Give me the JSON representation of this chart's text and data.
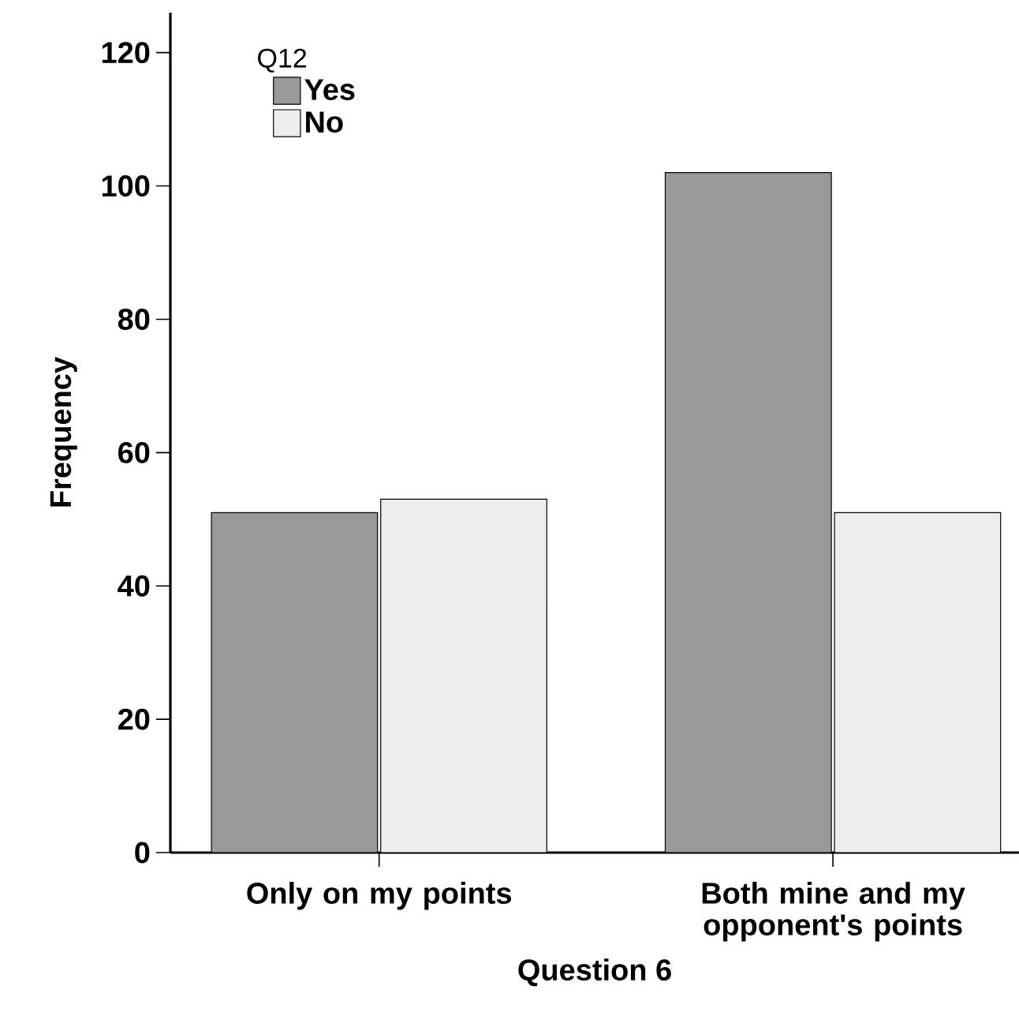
{
  "chart_data": {
    "type": "bar",
    "xlabel": "Question 6",
    "ylabel": "Frequency",
    "legend_title": "Q12",
    "categories": [
      "Only on my points",
      "Both mine and my opponent's points"
    ],
    "series": [
      {
        "name": "Yes",
        "color": "#999999",
        "values": [
          51,
          102
        ]
      },
      {
        "name": "No",
        "color": "#ededed",
        "values": [
          53,
          51
        ]
      }
    ],
    "ylim": [
      0,
      126
    ],
    "yticks": [
      0,
      20,
      40,
      60,
      80,
      100,
      120
    ],
    "grid": false,
    "legend": "top left"
  }
}
